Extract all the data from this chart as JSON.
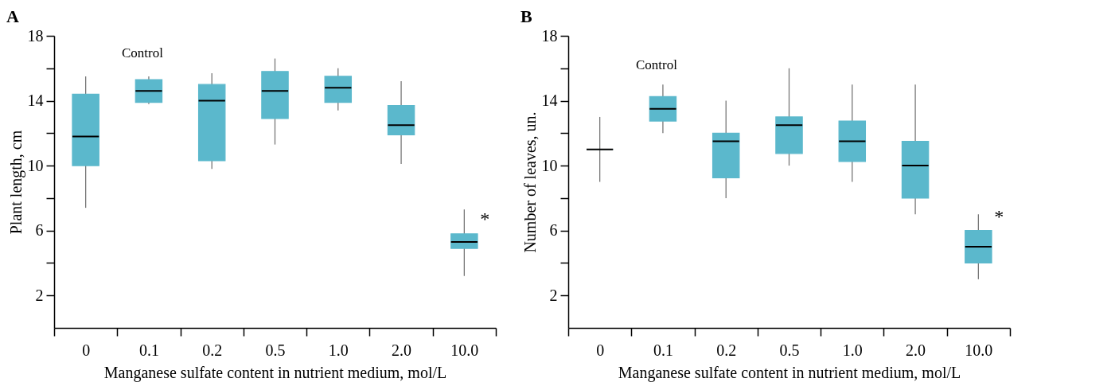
{
  "chart_data": [
    {
      "type": "box",
      "title": "A",
      "xlabel": "Manganese sulfate content in nutrient medium, mol/L",
      "ylabel": "Plant length, cm",
      "color": "#5bb8cc",
      "categories": [
        "0",
        "0.1",
        "0.2",
        "0.5",
        "1.0",
        "2.0",
        "10.0"
      ],
      "boxes": [
        {
          "low": 7.4,
          "q1": 10.0,
          "median": 11.8,
          "q3": 14.4,
          "high": 15.5
        },
        {
          "low": 13.8,
          "q1": 13.9,
          "median": 14.6,
          "q3": 15.3,
          "high": 15.5
        },
        {
          "low": 9.8,
          "q1": 10.3,
          "median": 14.0,
          "q3": 15.0,
          "high": 15.7
        },
        {
          "low": 11.3,
          "q1": 12.9,
          "median": 14.6,
          "q3": 15.8,
          "high": 16.6
        },
        {
          "low": 13.4,
          "q1": 13.9,
          "median": 14.8,
          "q3": 15.5,
          "high": 16.0
        },
        {
          "low": 10.1,
          "q1": 11.9,
          "median": 12.5,
          "q3": 13.7,
          "high": 15.2
        },
        {
          "low": 3.2,
          "q1": 4.9,
          "median": 5.3,
          "q3": 5.8,
          "high": 7.3
        }
      ],
      "ylim": [
        0,
        18
      ],
      "yticks": [
        2,
        {
          "value": 4,
          "label": null
        },
        6,
        {
          "value": 8,
          "label": null
        },
        10,
        {
          "value": 12,
          "label": null
        },
        14,
        {
          "value": 16,
          "label": null
        },
        18
      ],
      "annotations": [
        "Control",
        "*"
      ]
    },
    {
      "type": "box",
      "title": "B",
      "xlabel": "Manganese sulfate content in nutrient medium, mol/L",
      "ylabel": "Number of leaves, un.",
      "color": "#5bb8cc",
      "categories": [
        "0",
        "0.1",
        "0.2",
        "0.5",
        "1.0",
        "2.0",
        "10.0"
      ],
      "boxes": [
        {
          "low": 9,
          "q1": 11,
          "median": 11,
          "q3": 11,
          "high": 13
        },
        {
          "low": 12,
          "q1": 12.75,
          "median": 13.5,
          "q3": 14.25,
          "high": 15
        },
        {
          "low": 8,
          "q1": 9.25,
          "median": 11.5,
          "q3": 12,
          "high": 14
        },
        {
          "low": 10,
          "q1": 10.75,
          "median": 12.5,
          "q3": 13,
          "high": 16
        },
        {
          "low": 9,
          "q1": 10.25,
          "median": 11.5,
          "q3": 12.75,
          "high": 15
        },
        {
          "low": 7,
          "q1": 8,
          "median": 10,
          "q3": 11.5,
          "high": 15
        },
        {
          "low": 3,
          "q1": 4,
          "median": 5,
          "q3": 6,
          "high": 7
        }
      ],
      "ylim": [
        0,
        18
      ],
      "yticks": [
        2,
        {
          "value": 4,
          "label": null
        },
        6,
        {
          "value": 8,
          "label": null
        },
        10,
        {
          "value": 12,
          "label": null
        },
        14,
        {
          "value": 16,
          "label": null
        },
        18
      ],
      "annotations": [
        "Control",
        "*"
      ]
    }
  ]
}
